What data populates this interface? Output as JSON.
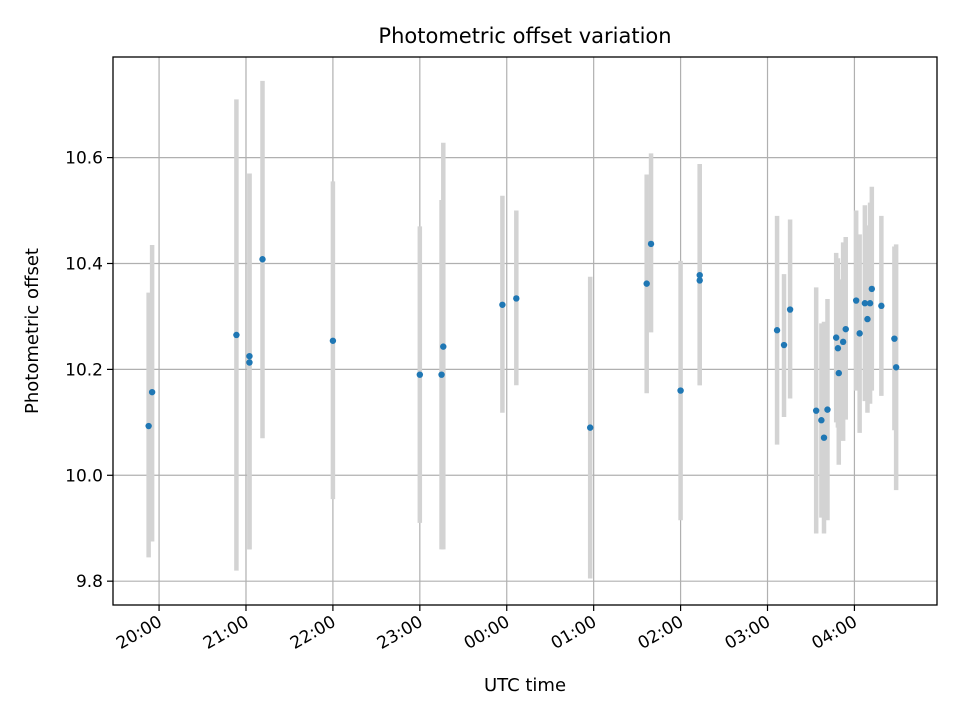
{
  "chart_data": {
    "type": "scatter",
    "title": "Photometric offset variation",
    "xlabel": "UTC time",
    "ylabel": "Photometric offset",
    "grid": true,
    "x_unit": "hours since 20:00 UTC",
    "xlim": [
      -0.53,
      8.95
    ],
    "ylim": [
      9.755,
      10.79
    ],
    "xticks": [
      {
        "value": 0,
        "label": "20:00"
      },
      {
        "value": 1,
        "label": "21:00"
      },
      {
        "value": 2,
        "label": "22:00"
      },
      {
        "value": 3,
        "label": "23:00"
      },
      {
        "value": 4,
        "label": "00:00"
      },
      {
        "value": 5,
        "label": "01:00"
      },
      {
        "value": 6,
        "label": "02:00"
      },
      {
        "value": 7,
        "label": "03:00"
      },
      {
        "value": 8,
        "label": "04:00"
      }
    ],
    "yticks": [
      {
        "value": 9.8,
        "label": "9.8"
      },
      {
        "value": 10.0,
        "label": "10.0"
      },
      {
        "value": 10.2,
        "label": "10.2"
      },
      {
        "value": 10.4,
        "label": "10.4"
      },
      {
        "value": 10.6,
        "label": "10.6"
      }
    ],
    "marker_color": "#1f77b4",
    "errorbar_color": "#d3d3d3",
    "points": [
      {
        "x": -0.12,
        "y": 10.093,
        "lo": 9.845,
        "hi": 10.345
      },
      {
        "x": -0.08,
        "y": 10.157,
        "lo": 9.875,
        "hi": 10.435
      },
      {
        "x": 0.89,
        "y": 10.265,
        "lo": 9.82,
        "hi": 10.71
      },
      {
        "x": 1.04,
        "y": 10.225,
        "lo": 9.86,
        "hi": 10.57
      },
      {
        "x": 1.04,
        "y": 10.213,
        "lo": 9.86,
        "hi": 10.57
      },
      {
        "x": 1.19,
        "y": 10.408,
        "lo": 10.07,
        "hi": 10.745
      },
      {
        "x": 2.0,
        "y": 10.254,
        "lo": 9.955,
        "hi": 10.555
      },
      {
        "x": 3.0,
        "y": 10.19,
        "lo": 9.91,
        "hi": 10.47
      },
      {
        "x": 3.25,
        "y": 10.19,
        "lo": 9.86,
        "hi": 10.52
      },
      {
        "x": 3.27,
        "y": 10.243,
        "lo": 9.86,
        "hi": 10.628
      },
      {
        "x": 3.95,
        "y": 10.322,
        "lo": 10.118,
        "hi": 10.528
      },
      {
        "x": 4.11,
        "y": 10.334,
        "lo": 10.17,
        "hi": 10.5
      },
      {
        "x": 4.96,
        "y": 10.09,
        "lo": 9.805,
        "hi": 10.375
      },
      {
        "x": 5.61,
        "y": 10.362,
        "lo": 10.155,
        "hi": 10.568
      },
      {
        "x": 5.66,
        "y": 10.437,
        "lo": 10.27,
        "hi": 10.608
      },
      {
        "x": 6.0,
        "y": 10.16,
        "lo": 9.915,
        "hi": 10.405
      },
      {
        "x": 6.22,
        "y": 10.378,
        "lo": 10.17,
        "hi": 10.588
      },
      {
        "x": 6.22,
        "y": 10.368,
        "lo": 10.17,
        "hi": 10.588
      },
      {
        "x": 7.11,
        "y": 10.274,
        "lo": 10.058,
        "hi": 10.49
      },
      {
        "x": 7.19,
        "y": 10.246,
        "lo": 10.11,
        "hi": 10.38
      },
      {
        "x": 7.26,
        "y": 10.313,
        "lo": 10.145,
        "hi": 10.483
      },
      {
        "x": 7.56,
        "y": 10.122,
        "lo": 9.89,
        "hi": 10.355
      },
      {
        "x": 7.62,
        "y": 10.104,
        "lo": 9.92,
        "hi": 10.287
      },
      {
        "x": 7.65,
        "y": 10.071,
        "lo": 9.89,
        "hi": 10.29
      },
      {
        "x": 7.69,
        "y": 10.124,
        "lo": 9.915,
        "hi": 10.333
      },
      {
        "x": 7.79,
        "y": 10.26,
        "lo": 10.1,
        "hi": 10.42
      },
      {
        "x": 7.81,
        "y": 10.24,
        "lo": 10.09,
        "hi": 10.41
      },
      {
        "x": 7.82,
        "y": 10.193,
        "lo": 10.02,
        "hi": 10.37
      },
      {
        "x": 7.87,
        "y": 10.252,
        "lo": 10.065,
        "hi": 10.44
      },
      {
        "x": 7.9,
        "y": 10.276,
        "lo": 10.105,
        "hi": 10.45
      },
      {
        "x": 8.02,
        "y": 10.33,
        "lo": 10.16,
        "hi": 10.5
      },
      {
        "x": 8.06,
        "y": 10.268,
        "lo": 10.08,
        "hi": 10.455
      },
      {
        "x": 8.12,
        "y": 10.325,
        "lo": 10.14,
        "hi": 10.51
      },
      {
        "x": 8.15,
        "y": 10.295,
        "lo": 10.118,
        "hi": 10.472
      },
      {
        "x": 8.18,
        "y": 10.325,
        "lo": 10.135,
        "hi": 10.515
      },
      {
        "x": 8.2,
        "y": 10.352,
        "lo": 10.16,
        "hi": 10.545
      },
      {
        "x": 8.31,
        "y": 10.32,
        "lo": 10.15,
        "hi": 10.49
      },
      {
        "x": 8.46,
        "y": 10.258,
        "lo": 10.085,
        "hi": 10.432
      },
      {
        "x": 8.48,
        "y": 10.204,
        "lo": 9.972,
        "hi": 10.436
      }
    ]
  }
}
